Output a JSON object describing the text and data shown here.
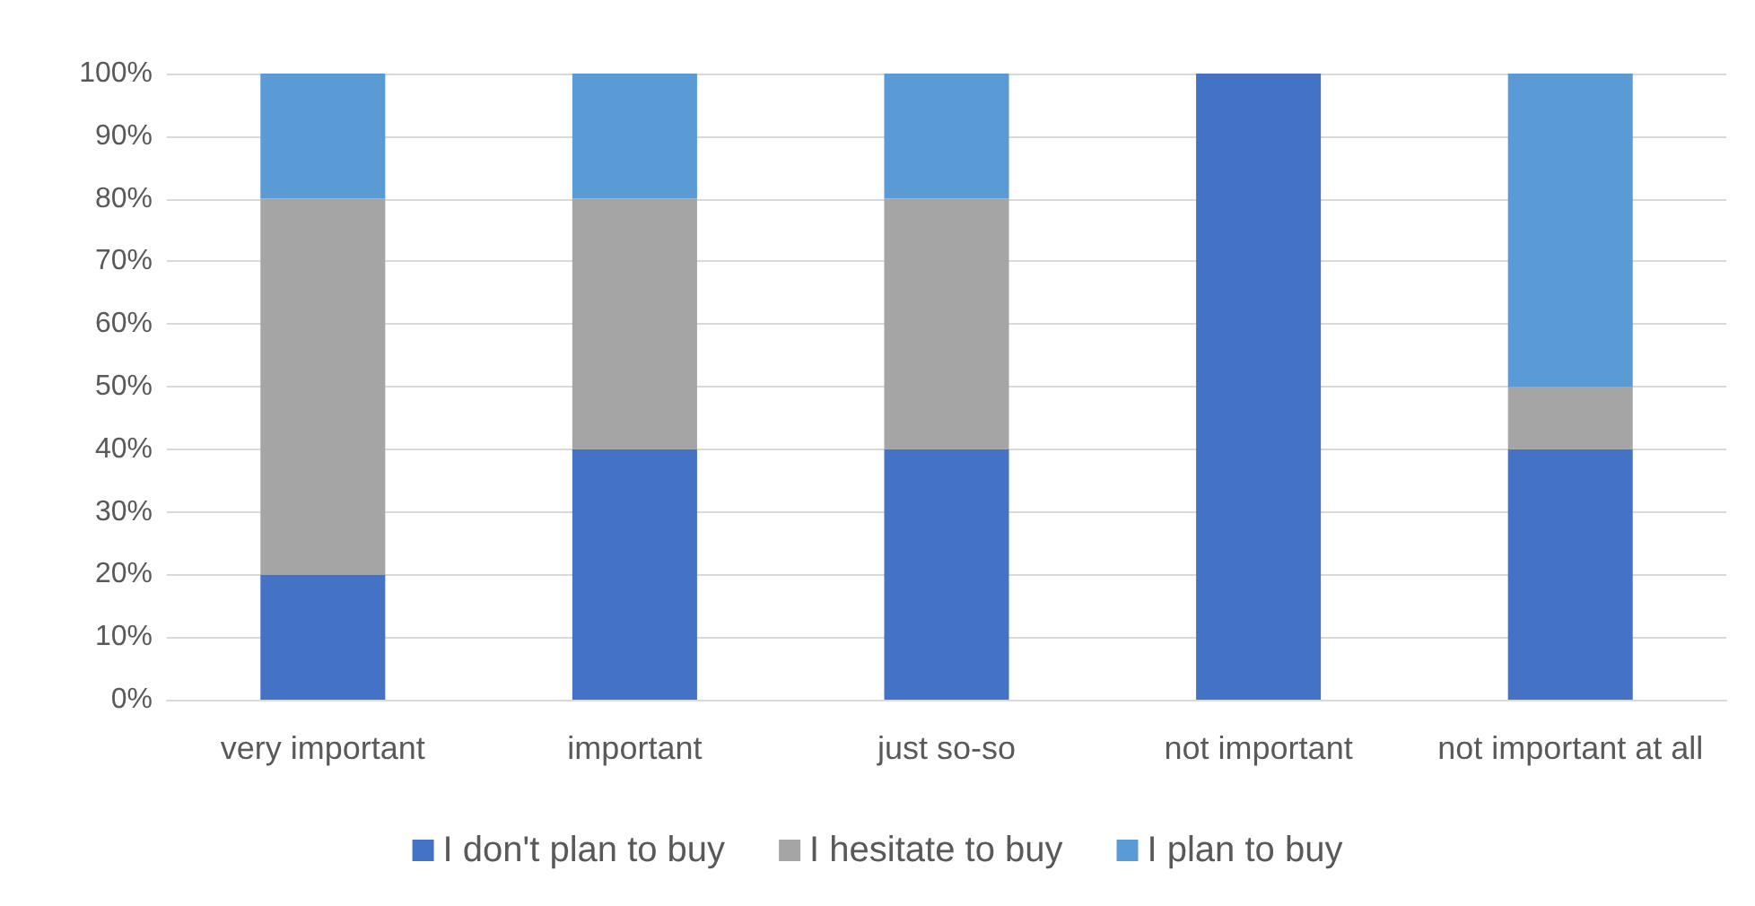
{
  "chart_data": {
    "type": "bar",
    "stacked": true,
    "categories": [
      "very important",
      "important",
      "just so-so",
      "not important",
      "not important at all"
    ],
    "series": [
      {
        "name": "I don't plan to buy",
        "color": "#4472c4",
        "values": [
          20,
          40,
          40,
          100,
          40
        ]
      },
      {
        "name": "I hesitate to buy",
        "color": "#a5a5a5",
        "values": [
          60,
          40,
          40,
          0,
          10
        ]
      },
      {
        "name": "I plan to buy",
        "color": "#5b9bd5",
        "values": [
          20,
          20,
          20,
          0,
          50
        ]
      }
    ],
    "ylim": [
      0,
      100
    ],
    "yticks": [
      {
        "value": 0,
        "label": "0%"
      },
      {
        "value": 10,
        "label": "10%"
      },
      {
        "value": 20,
        "label": "20%"
      },
      {
        "value": 30,
        "label": "30%"
      },
      {
        "value": 40,
        "label": "40%"
      },
      {
        "value": 50,
        "label": "50%"
      },
      {
        "value": 60,
        "label": "60%"
      },
      {
        "value": 70,
        "label": "70%"
      },
      {
        "value": 80,
        "label": "80%"
      },
      {
        "value": 90,
        "label": "90%"
      },
      {
        "value": 100,
        "label": "100%"
      }
    ],
    "grid": "y",
    "legend": "bottom"
  }
}
